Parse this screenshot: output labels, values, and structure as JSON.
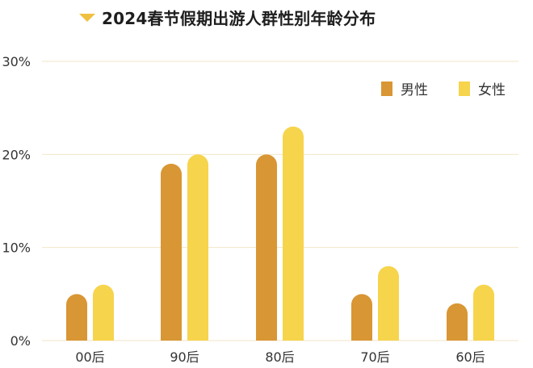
{
  "chart_data": {
    "type": "bar",
    "title": "2024春节假期出游人群性别年龄分布",
    "categories": [
      "00后",
      "90后",
      "80后",
      "70后",
      "60后"
    ],
    "series": [
      {
        "name": "男性",
        "values": [
          5,
          19,
          20,
          5,
          4
        ],
        "color": "#d99634"
      },
      {
        "name": "女性",
        "values": [
          6,
          20,
          23,
          8,
          6
        ],
        "color": "#f6d44c"
      }
    ],
    "ylim": [
      0,
      30
    ],
    "yticks": [
      "0%",
      "10%",
      "20%",
      "30%"
    ],
    "ytick_values": [
      0,
      10,
      20,
      30
    ],
    "grid": true,
    "legend_position": "top-right",
    "xlabel": "",
    "ylabel": ""
  },
  "colors": {
    "gridline": "#f3e6c8",
    "title_marker": "#f0c040"
  }
}
